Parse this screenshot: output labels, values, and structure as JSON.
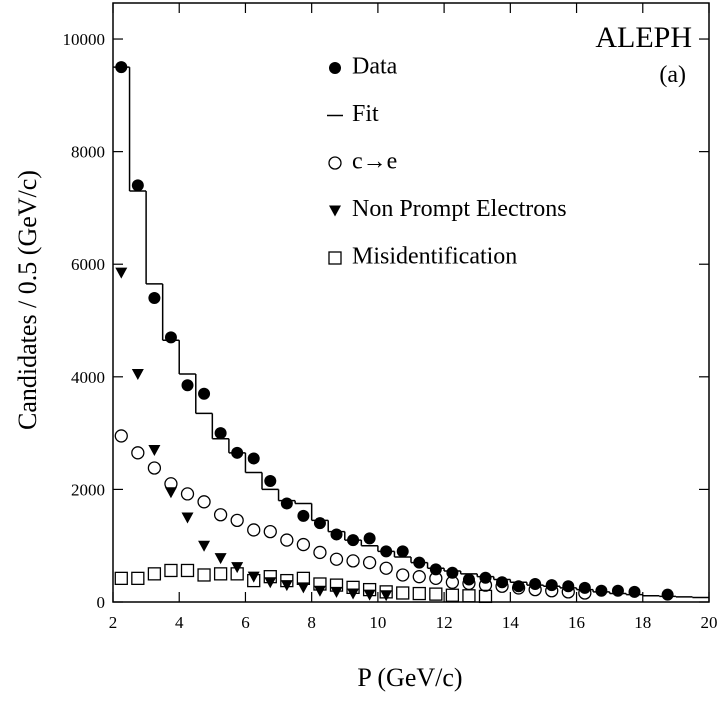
{
  "chart_data": {
    "type": "scatter",
    "xlabel": "P (GeV/c)",
    "ylabel": "Candidates / 0.5 (GeV/c)",
    "annotations": [
      "ALEPH",
      "(a)"
    ],
    "xlim": [
      2,
      20
    ],
    "xticks": [
      2,
      4,
      6,
      8,
      10,
      12,
      14,
      16,
      18,
      20
    ],
    "ylim": [
      0,
      10640
    ],
    "yticks": [
      0,
      2000,
      4000,
      6000,
      8000,
      10000
    ],
    "color": "#000000",
    "series": [
      {
        "name": "Data",
        "marker": "filled-circle",
        "x": [
          2.25,
          2.75,
          3.25,
          3.75,
          4.25,
          4.75,
          5.25,
          5.75,
          6.25,
          6.75,
          7.25,
          7.75,
          8.25,
          8.75,
          9.25,
          9.75,
          10.25,
          10.75,
          11.25,
          11.75,
          12.25,
          12.75,
          13.25,
          13.75,
          14.25,
          14.75,
          15.25,
          15.75,
          16.25,
          16.75,
          17.25,
          17.75,
          18.75
        ],
        "values": [
          9500,
          7400,
          5400,
          4700,
          3850,
          3700,
          3000,
          2650,
          2550,
          2150,
          1750,
          1530,
          1400,
          1200,
          1100,
          1130,
          900,
          900,
          700,
          580,
          520,
          400,
          430,
          350,
          280,
          320,
          300,
          280,
          250,
          200,
          200,
          180,
          130
        ]
      },
      {
        "name": "Fit",
        "marker": "step",
        "x": [
          2.25,
          2.75,
          3.25,
          3.75,
          4.25,
          4.75,
          5.25,
          5.75,
          6.25,
          6.75,
          7.25,
          7.75,
          8.25,
          8.75,
          9.25,
          9.75,
          10.25,
          10.75,
          11.25,
          11.75,
          12.25,
          12.75,
          13.25,
          13.75,
          14.25,
          14.75,
          15.25,
          15.75,
          16.25,
          16.75,
          17.25,
          17.75,
          18.25,
          18.75,
          19.25,
          19.75
        ],
        "values": [
          9500,
          7300,
          5650,
          4650,
          4050,
          3350,
          2900,
          2650,
          2300,
          2000,
          1800,
          1750,
          1450,
          1250,
          1100,
          1000,
          900,
          800,
          700,
          600,
          550,
          500,
          450,
          400,
          350,
          300,
          280,
          250,
          220,
          180,
          150,
          130,
          110,
          100,
          90,
          80
        ]
      },
      {
        "name": "c→e",
        "marker": "open-circle",
        "x": [
          2.25,
          2.75,
          3.25,
          3.75,
          4.25,
          4.75,
          5.25,
          5.75,
          6.25,
          6.75,
          7.25,
          7.75,
          8.25,
          8.75,
          9.25,
          9.75,
          10.25,
          10.75,
          11.25,
          11.75,
          12.25,
          12.75,
          13.25,
          13.75,
          14.25,
          14.75,
          15.25,
          15.75,
          16.25
        ],
        "values": [
          2950,
          2650,
          2380,
          2100,
          1920,
          1780,
          1550,
          1450,
          1280,
          1250,
          1100,
          1020,
          880,
          760,
          730,
          700,
          600,
          480,
          450,
          420,
          350,
          330,
          300,
          280,
          250,
          220,
          200,
          180,
          160
        ]
      },
      {
        "name": "Non Prompt Electrons",
        "marker": "triangle-down",
        "x": [
          2.25,
          2.75,
          3.25,
          3.75,
          4.25,
          4.75,
          5.25,
          5.75,
          6.25,
          6.75,
          7.25,
          7.75,
          8.25,
          8.75,
          9.25,
          9.75,
          10.25
        ],
        "values": [
          5850,
          4050,
          2700,
          1950,
          1500,
          1000,
          780,
          620,
          450,
          350,
          300,
          260,
          200,
          180,
          150,
          130,
          120
        ]
      },
      {
        "name": "Misidentification",
        "marker": "open-square",
        "x": [
          2.25,
          2.75,
          3.25,
          3.75,
          4.25,
          4.75,
          5.25,
          5.75,
          6.25,
          6.75,
          7.25,
          7.75,
          8.25,
          8.75,
          9.25,
          9.75,
          10.25,
          10.75,
          11.25,
          11.75,
          12.25,
          12.75,
          13.25
        ],
        "values": [
          420,
          420,
          500,
          560,
          560,
          480,
          500,
          500,
          380,
          450,
          380,
          420,
          320,
          300,
          260,
          220,
          180,
          160,
          150,
          140,
          120,
          110,
          100
        ]
      }
    ]
  }
}
